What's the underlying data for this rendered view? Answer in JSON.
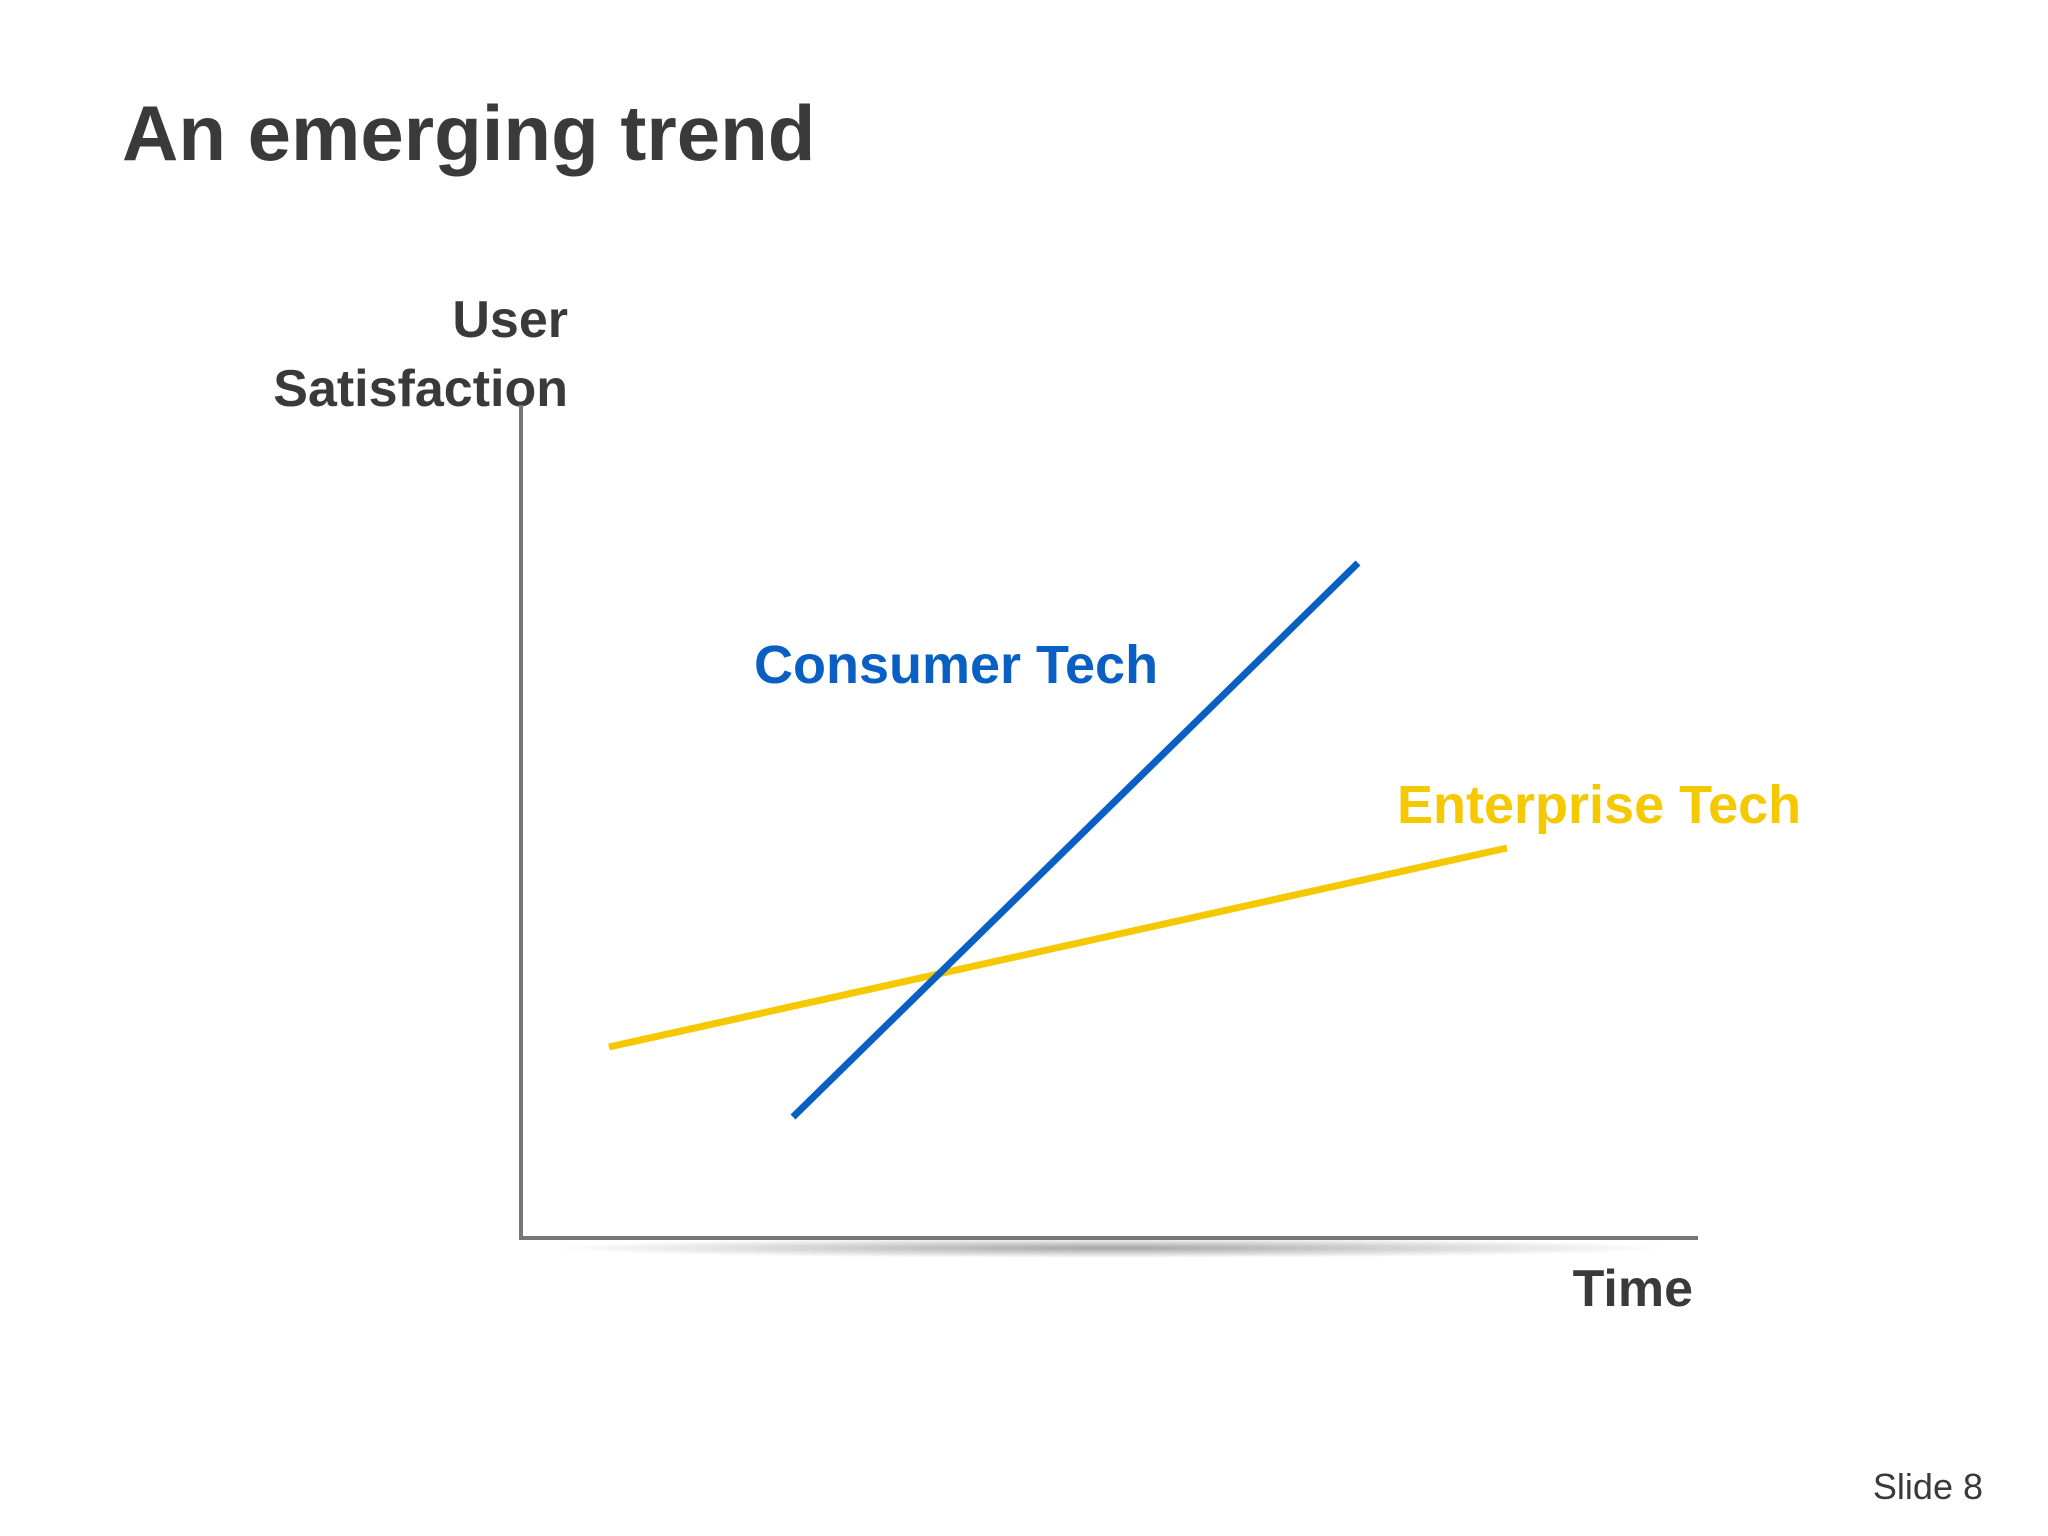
{
  "header": {
    "title": "An emerging trend"
  },
  "axes": {
    "y_label": [
      "User",
      "Satisfaction"
    ],
    "x_label": "Time"
  },
  "lines": [
    {
      "label": "Consumer Tech"
    },
    {
      "label": "Enterprise Tech"
    }
  ],
  "footer": {
    "slide_number": "Slide 8"
  }
}
